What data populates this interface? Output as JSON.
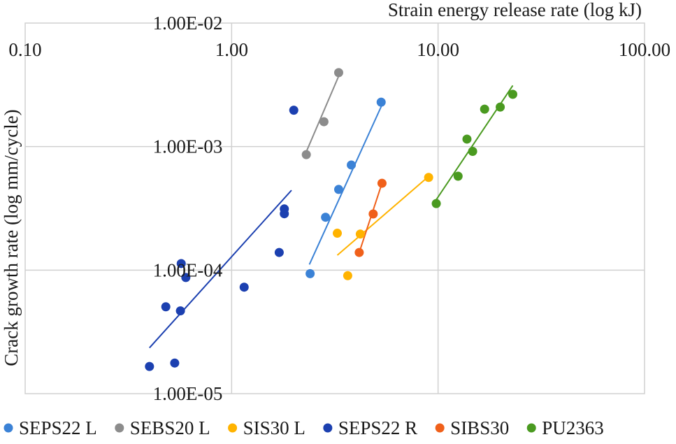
{
  "chart_data": {
    "type": "scatter",
    "x_scale": "log",
    "y_scale": "log",
    "xlabel": "Strain energy release rate (log kJ)",
    "ylabel": "Crack growth rate (log mm/cycle)",
    "xlim": [
      0.1,
      100
    ],
    "ylim": [
      1e-05,
      0.01
    ],
    "x_ticks": [
      0.1,
      1,
      10,
      100
    ],
    "x_tick_labels": [
      "0.10",
      "1.00",
      "10.00",
      "100.00"
    ],
    "y_ticks": [
      0.01,
      0.001,
      0.0001,
      1e-05
    ],
    "y_tick_labels": [
      "1.00E-02",
      "1.00E-03",
      "1.00E-04",
      "1.00E-05"
    ],
    "grid": true,
    "legend_position": "bottom",
    "series": [
      {
        "name": "SEPS22 L",
        "color": "#3B82D6",
        "points": [
          [
            2.4,
            9.36e-05
          ],
          [
            2.85,
            0.000268
          ],
          [
            3.3,
            0.00045
          ],
          [
            3.8,
            0.00071
          ],
          [
            5.3,
            0.00229
          ]
        ],
        "trendline": [
          [
            2.38,
            0.000111
          ],
          [
            5.35,
            0.00218
          ]
        ]
      },
      {
        "name": "SEBS20 L",
        "color": "#8C8C8C",
        "points": [
          [
            2.3,
            0.000861
          ],
          [
            2.8,
            0.00159
          ],
          [
            3.3,
            0.00397
          ]
        ],
        "trendline": [
          [
            2.3,
            0.000908
          ],
          [
            3.3,
            0.00372
          ]
        ]
      },
      {
        "name": "SIS30 L",
        "color": "#FFB300",
        "points": [
          [
            3.25,
            0.000199
          ],
          [
            4.2,
            0.000196
          ],
          [
            3.65,
            9.02e-05
          ],
          [
            9.0,
            0.000563
          ]
        ],
        "trendline": [
          [
            3.25,
            0.000132
          ],
          [
            9.0,
            0.000574
          ]
        ]
      },
      {
        "name": "SEPS22 R",
        "color": "#1C40B0",
        "points": [
          [
            0.4,
            1.66e-05
          ],
          [
            0.53,
            1.77e-05
          ],
          [
            0.48,
            5.05e-05
          ],
          [
            0.565,
            4.68e-05
          ],
          [
            0.57,
            0.000113
          ],
          [
            0.6,
            8.72e-05
          ],
          [
            1.15,
            7.28e-05
          ],
          [
            1.7,
            0.000139
          ],
          [
            1.8,
            0.000286
          ],
          [
            1.8,
            0.000313
          ],
          [
            2.0,
            0.00197
          ]
        ],
        "trendline": [
          [
            0.4,
            2.35e-05
          ],
          [
            1.95,
            0.000443
          ]
        ]
      },
      {
        "name": "SIBS30",
        "color": "#F0601A",
        "points": [
          [
            4.15,
            0.000139
          ],
          [
            4.85,
            0.000285
          ],
          [
            5.35,
            0.000505
          ]
        ],
        "trendline": [
          [
            4.15,
            0.000139
          ],
          [
            5.35,
            0.000505
          ]
        ]
      },
      {
        "name": "PU2363",
        "color": "#4A9A20",
        "points": [
          [
            9.8,
            0.000346
          ],
          [
            12.5,
            0.000576
          ],
          [
            13.8,
            0.00115
          ],
          [
            14.7,
            0.000915
          ],
          [
            16.8,
            0.00201
          ],
          [
            20.0,
            0.00209
          ],
          [
            23.0,
            0.00265
          ]
        ],
        "trendline": [
          [
            9.8,
            0.000372
          ],
          [
            23.0,
            0.00312
          ]
        ]
      }
    ]
  }
}
